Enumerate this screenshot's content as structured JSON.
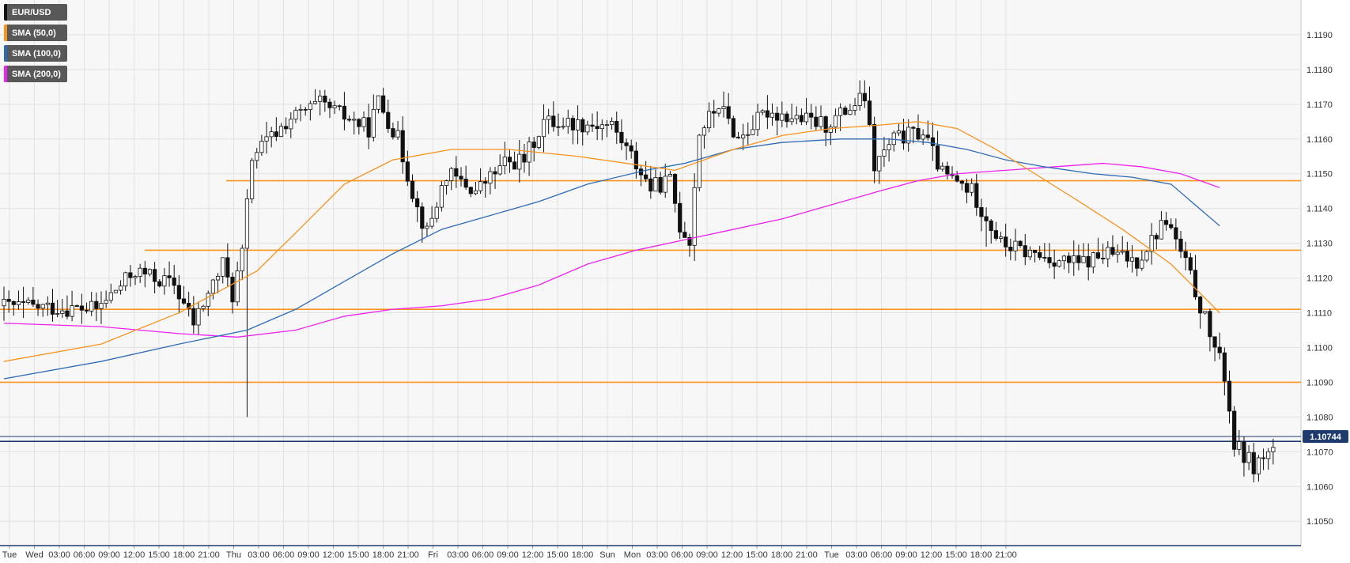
{
  "legend": [
    {
      "label": "EUR/USD",
      "color": "#111111"
    },
    {
      "label": "SMA (50,0)",
      "color": "#f7931e"
    },
    {
      "label": "SMA (100,0)",
      "color": "#2e6bb5"
    },
    {
      "label": "SMA (200,0)",
      "color": "#ee22ee"
    }
  ],
  "price_badge": "1.10744",
  "colors": {
    "background": "#f7f7f7",
    "grid": "#e2e2e2",
    "sma50": "#f7931e",
    "sma100": "#2e6bb5",
    "sma200": "#ee22ee",
    "horizontal_levels": "#f7931e",
    "current_price": "#1f3b6e",
    "candle_up": "#ffffff",
    "candle_down": "#111111"
  },
  "chart_data": {
    "type": "candlestick",
    "symbol": "EUR/USD",
    "ylim": [
      1.1043,
      1.12
    ],
    "y_ticks": [
      "1.1050",
      "1.1060",
      "1.1070",
      "1.1080",
      "1.1090",
      "1.1100",
      "1.1110",
      "1.1120",
      "1.1130",
      "1.1140",
      "1.1150",
      "1.1160",
      "1.1170",
      "1.1180",
      "1.1190"
    ],
    "x_ticks": [
      "Tue",
      "Wed",
      "03:00",
      "06:00",
      "09:00",
      "12:00",
      "15:00",
      "18:00",
      "21:00",
      "Thu",
      "03:00",
      "06:00",
      "09:00",
      "12:00",
      "15:00",
      "18:00",
      "21:00",
      "Fri",
      "03:00",
      "06:00",
      "09:00",
      "12:00",
      "15:00",
      "18:00",
      "Sun",
      "Mon",
      "03:00",
      "06:00",
      "09:00",
      "12:00",
      "15:00",
      "18:00",
      "21:00",
      "Tue",
      "03:00",
      "06:00",
      "09:00",
      "12:00",
      "15:00",
      "18:00",
      "21:00"
    ],
    "candle_count": 250,
    "price_path": [
      [
        0,
        1.1112
      ],
      [
        20,
        1.1111
      ],
      [
        28,
        1.1122
      ],
      [
        36,
        1.1118
      ],
      [
        40,
        1.1107
      ],
      [
        46,
        1.1124
      ],
      [
        48,
        1.1115
      ],
      [
        50,
        1.1127
      ],
      [
        52,
        1.1155
      ],
      [
        60,
        1.1166
      ],
      [
        66,
        1.117
      ],
      [
        76,
        1.1163
      ],
      [
        78,
        1.1171
      ],
      [
        82,
        1.116
      ],
      [
        86,
        1.114
      ],
      [
        88,
        1.1133
      ],
      [
        92,
        1.115
      ],
      [
        98,
        1.1145
      ],
      [
        104,
        1.1153
      ],
      [
        108,
        1.1154
      ],
      [
        112,
        1.1165
      ],
      [
        126,
        1.1164
      ],
      [
        130,
        1.1155
      ],
      [
        134,
        1.1146
      ],
      [
        138,
        1.1148
      ],
      [
        140,
        1.1135
      ],
      [
        142,
        1.1131
      ],
      [
        144,
        1.1162
      ],
      [
        148,
        1.117
      ],
      [
        152,
        1.116
      ],
      [
        158,
        1.1168
      ],
      [
        170,
        1.1164
      ],
      [
        178,
        1.1172
      ],
      [
        180,
        1.1152
      ],
      [
        184,
        1.116
      ],
      [
        190,
        1.1162
      ],
      [
        194,
        1.115
      ],
      [
        200,
        1.1145
      ],
      [
        206,
        1.113
      ],
      [
        212,
        1.1127
      ],
      [
        222,
        1.1124
      ],
      [
        228,
        1.1127
      ],
      [
        234,
        1.1125
      ],
      [
        240,
        1.1137
      ],
      [
        244,
        1.1124
      ],
      [
        248,
        1.1108
      ],
      [
        252,
        1.1092
      ],
      [
        254,
        1.1072
      ],
      [
        258,
        1.1066
      ],
      [
        262,
        1.1071
      ]
    ],
    "sma50": {
      "name": "SMA (50,0)",
      "points": [
        [
          0,
          1.1096
        ],
        [
          20,
          1.1101
        ],
        [
          36,
          1.111
        ],
        [
          44,
          1.1116
        ],
        [
          52,
          1.1122
        ],
        [
          60,
          1.1133
        ],
        [
          70,
          1.1147
        ],
        [
          80,
          1.1154
        ],
        [
          92,
          1.1157
        ],
        [
          104,
          1.1157
        ],
        [
          118,
          1.1155
        ],
        [
          128,
          1.1153
        ],
        [
          138,
          1.1151
        ],
        [
          150,
          1.1157
        ],
        [
          160,
          1.1161
        ],
        [
          170,
          1.1163
        ],
        [
          180,
          1.1164
        ],
        [
          188,
          1.1165
        ],
        [
          196,
          1.1163
        ],
        [
          204,
          1.1157
        ],
        [
          212,
          1.115
        ],
        [
          220,
          1.1143
        ],
        [
          230,
          1.1134
        ],
        [
          240,
          1.1124
        ],
        [
          250,
          1.111
        ]
      ]
    },
    "sma100": {
      "name": "SMA (100,0)",
      "points": [
        [
          0,
          1.1091
        ],
        [
          20,
          1.1096
        ],
        [
          36,
          1.1101
        ],
        [
          50,
          1.1105
        ],
        [
          60,
          1.1111
        ],
        [
          70,
          1.1119
        ],
        [
          80,
          1.1127
        ],
        [
          90,
          1.1134
        ],
        [
          100,
          1.1138
        ],
        [
          110,
          1.1142
        ],
        [
          120,
          1.1147
        ],
        [
          132,
          1.1151
        ],
        [
          140,
          1.1153
        ],
        [
          150,
          1.1157
        ],
        [
          160,
          1.1159
        ],
        [
          172,
          1.116
        ],
        [
          182,
          1.116
        ],
        [
          190,
          1.1159
        ],
        [
          198,
          1.1157
        ],
        [
          206,
          1.1154
        ],
        [
          214,
          1.1152
        ],
        [
          224,
          1.115
        ],
        [
          232,
          1.1149
        ],
        [
          240,
          1.1147
        ],
        [
          250,
          1.1135
        ]
      ]
    },
    "sma200": {
      "name": "SMA (200,0)",
      "points": [
        [
          0,
          1.1107
        ],
        [
          20,
          1.1106
        ],
        [
          36,
          1.1104
        ],
        [
          48,
          1.1103
        ],
        [
          60,
          1.1105
        ],
        [
          70,
          1.1109
        ],
        [
          80,
          1.1111
        ],
        [
          90,
          1.1112
        ],
        [
          100,
          1.1114
        ],
        [
          110,
          1.1118
        ],
        [
          120,
          1.1124
        ],
        [
          130,
          1.1128
        ],
        [
          140,
          1.1131
        ],
        [
          150,
          1.1134
        ],
        [
          160,
          1.1137
        ],
        [
          170,
          1.1141
        ],
        [
          180,
          1.1145
        ],
        [
          188,
          1.1148
        ],
        [
          196,
          1.115
        ],
        [
          206,
          1.1151
        ],
        [
          216,
          1.1152
        ],
        [
          226,
          1.1153
        ],
        [
          234,
          1.1152
        ],
        [
          242,
          1.115
        ],
        [
          250,
          1.1146
        ]
      ]
    },
    "horizontal_levels": [
      1.1148,
      1.1128,
      1.1111,
      1.109
    ],
    "current_price": 1.10744,
    "extra_blue_lines": [
      1.1073,
      1.1043
    ]
  }
}
